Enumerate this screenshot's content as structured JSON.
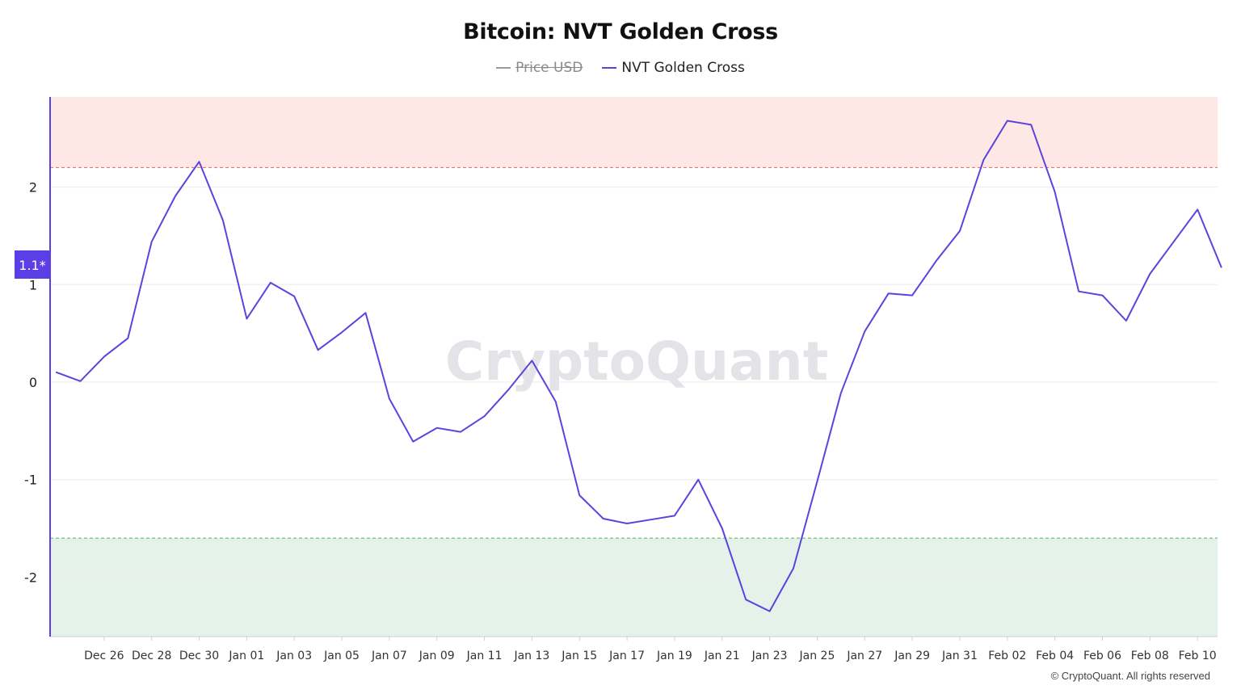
{
  "title": "Bitcoin: NVT Golden Cross",
  "legend": [
    {
      "label": "Price USD",
      "hidden": true
    },
    {
      "label": "NVT Golden Cross",
      "hidden": false,
      "color": "#5b43e0"
    }
  ],
  "watermark": "CryptoQuant",
  "credit": "© CryptoQuant. All rights reserved",
  "current_value_badge": "1.1*",
  "colors": {
    "line": "#5b43e0",
    "upper_zone": "#fde8e6",
    "upper_threshold": "#e07a72",
    "lower_zone": "#e5f2ea",
    "lower_threshold": "#6cc46f",
    "badge": "#5b3ee6",
    "axis": "#5b3ee6"
  },
  "chart_data": {
    "type": "line",
    "title": "Bitcoin: NVT Golden Cross",
    "xlabel": "",
    "ylabel": "",
    "ylim": [
      -2.6,
      2.93
    ],
    "yticks": [
      2,
      1,
      0,
      -1,
      -2
    ],
    "x_start": "2024-12-25",
    "x_tick_labels": [
      "Dec 26",
      "Dec 28",
      "Dec 30",
      "Jan 01",
      "Jan 03",
      "Jan 05",
      "Jan 07",
      "Jan 09",
      "Jan 11",
      "Jan 13",
      "Jan 15",
      "Jan 17",
      "Jan 19",
      "Jan 21",
      "Jan 23",
      "Jan 25",
      "Jan 27",
      "Jan 29",
      "Jan 31",
      "Feb 02",
      "Feb 04",
      "Feb 06",
      "Feb 08",
      "Feb 10"
    ],
    "zones": {
      "upper_threshold": 2.2,
      "lower_threshold": -1.6
    },
    "grid": true,
    "legend_position": "top-center",
    "series": [
      {
        "name": "NVT Golden Cross",
        "x": [
          "2024-12-24",
          "2024-12-25",
          "2024-12-26",
          "2024-12-27",
          "2024-12-28",
          "2024-12-29",
          "2024-12-30",
          "2024-12-31",
          "2025-01-01",
          "2025-01-02",
          "2025-01-03",
          "2025-01-04",
          "2025-01-05",
          "2025-01-06",
          "2025-01-07",
          "2025-01-08",
          "2025-01-09",
          "2025-01-10",
          "2025-01-11",
          "2025-01-12",
          "2025-01-13",
          "2025-01-14",
          "2025-01-15",
          "2025-01-16",
          "2025-01-17",
          "2025-01-18",
          "2025-01-19",
          "2025-01-20",
          "2025-01-21",
          "2025-01-22",
          "2025-01-23",
          "2025-01-24",
          "2025-01-25",
          "2025-01-26",
          "2025-01-27",
          "2025-01-28",
          "2025-01-29",
          "2025-01-30",
          "2025-01-31",
          "2025-02-01",
          "2025-02-02",
          "2025-02-03",
          "2025-02-04",
          "2025-02-05",
          "2025-02-06",
          "2025-02-07",
          "2025-02-08",
          "2025-02-09",
          "2025-02-10",
          "2025-02-11"
        ],
        "values": [
          0.1,
          0.01,
          0.26,
          0.45,
          1.44,
          1.91,
          2.26,
          1.66,
          0.65,
          1.02,
          0.88,
          0.33,
          0.51,
          0.71,
          -0.17,
          -0.61,
          -0.47,
          -0.51,
          -0.35,
          -0.08,
          0.22,
          -0.2,
          -1.16,
          -1.4,
          -1.45,
          -1.41,
          -1.37,
          -1.0,
          -1.5,
          -2.23,
          -2.35,
          -1.91,
          -1.02,
          -0.11,
          0.52,
          0.91,
          0.89,
          1.24,
          1.55,
          2.28,
          2.68,
          2.64,
          1.95,
          0.93,
          0.89,
          0.63,
          1.11,
          1.44,
          1.77,
          1.18
        ]
      }
    ]
  }
}
